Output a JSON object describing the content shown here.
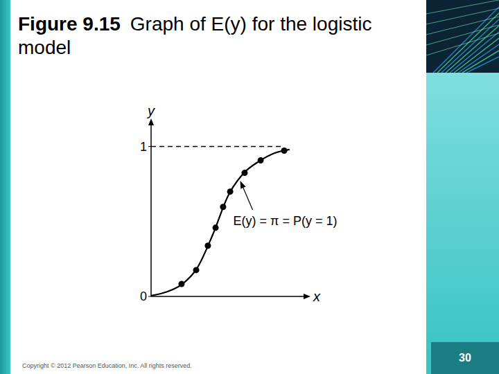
{
  "slide": {
    "figure_label": "Figure 9.15",
    "title": "Graph of E(y) for the logistic model",
    "copyright": "Copyright © 2012 Pearson Education, Inc. All rights reserved.",
    "page": 30
  },
  "chart_data": {
    "type": "line",
    "x_label": "x",
    "y_label": "y",
    "xlim": [
      0,
      10
    ],
    "ylim": [
      0,
      1.15
    ],
    "yticks": [
      0,
      1
    ],
    "tick_labels": "y",
    "grid": false,
    "series": [
      {
        "type": "line",
        "color": "#000000",
        "line_style": "solid",
        "x": [
          0,
          1,
          2,
          3,
          4,
          5,
          6,
          7,
          8,
          9
        ],
        "values": [
          0.005,
          0.03,
          0.08,
          0.19,
          0.41,
          0.67,
          0.82,
          0.9,
          0.955,
          0.98
        ]
      },
      {
        "type": "line",
        "color": "#000000",
        "line_style": "dashed",
        "x": [
          0,
          8.6
        ],
        "values": [
          1,
          1
        ]
      },
      {
        "type": "scatter",
        "color": "#000000",
        "marker": "circle",
        "x": [
          1.98,
          2.93,
          3.69,
          4.19,
          4.68,
          5.14,
          6.08,
          7.12,
          8.65
        ],
        "values": [
          0.083,
          0.176,
          0.338,
          0.458,
          0.597,
          0.699,
          0.824,
          0.907,
          0.972
        ]
      }
    ],
    "annotations": [
      {
        "text": "E(y) = π = P(y = 1)",
        "x": 5.7,
        "y": 0.79
      }
    ]
  }
}
